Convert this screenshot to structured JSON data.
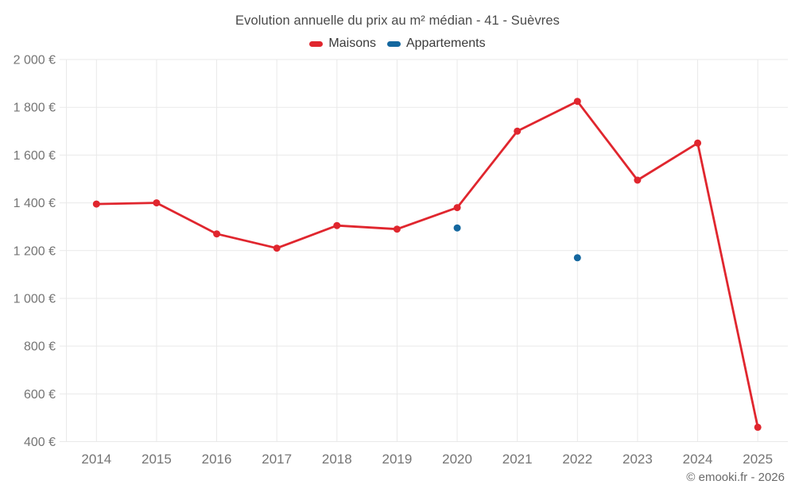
{
  "header": {
    "title": "Evolution annuelle du prix au m² médian - 41 - Suèvres"
  },
  "legend": {
    "items": [
      {
        "id": "maisons",
        "label": "Maisons",
        "color": "#e0262e"
      },
      {
        "id": "appartements",
        "label": "Appartements",
        "color": "#14679f"
      }
    ]
  },
  "footer": {
    "credit": "© emooki.fr - 2026"
  },
  "colors": {
    "maisons": "#e0262e",
    "appartements": "#14679f",
    "grid": "#e9e9e9",
    "axis_text": "#757575",
    "title_text": "#4a4a4a",
    "footer_text": "#6a6a6a",
    "background": "#ffffff"
  },
  "chart_data": {
    "type": "line",
    "title": "Evolution annuelle du prix au m² médian - 41 - Suèvres",
    "x": [
      2014,
      2015,
      2016,
      2017,
      2018,
      2019,
      2020,
      2021,
      2022,
      2023,
      2024,
      2025
    ],
    "series": [
      {
        "name": "Maisons",
        "type": "line",
        "color": "#e0262e",
        "values": [
          1395,
          1400,
          1270,
          1210,
          1305,
          1290,
          1380,
          1700,
          1825,
          1495,
          1650,
          460
        ]
      },
      {
        "name": "Appartements",
        "type": "scatter",
        "color": "#14679f",
        "values": [
          null,
          null,
          null,
          null,
          null,
          null,
          1295,
          null,
          1170,
          null,
          null,
          null
        ]
      }
    ],
    "xlabel": "",
    "ylabel": "",
    "ylim": [
      400,
      2000
    ],
    "ytick_step": 200,
    "ytick_suffix": " €",
    "grid": true,
    "legend_position": "top"
  }
}
